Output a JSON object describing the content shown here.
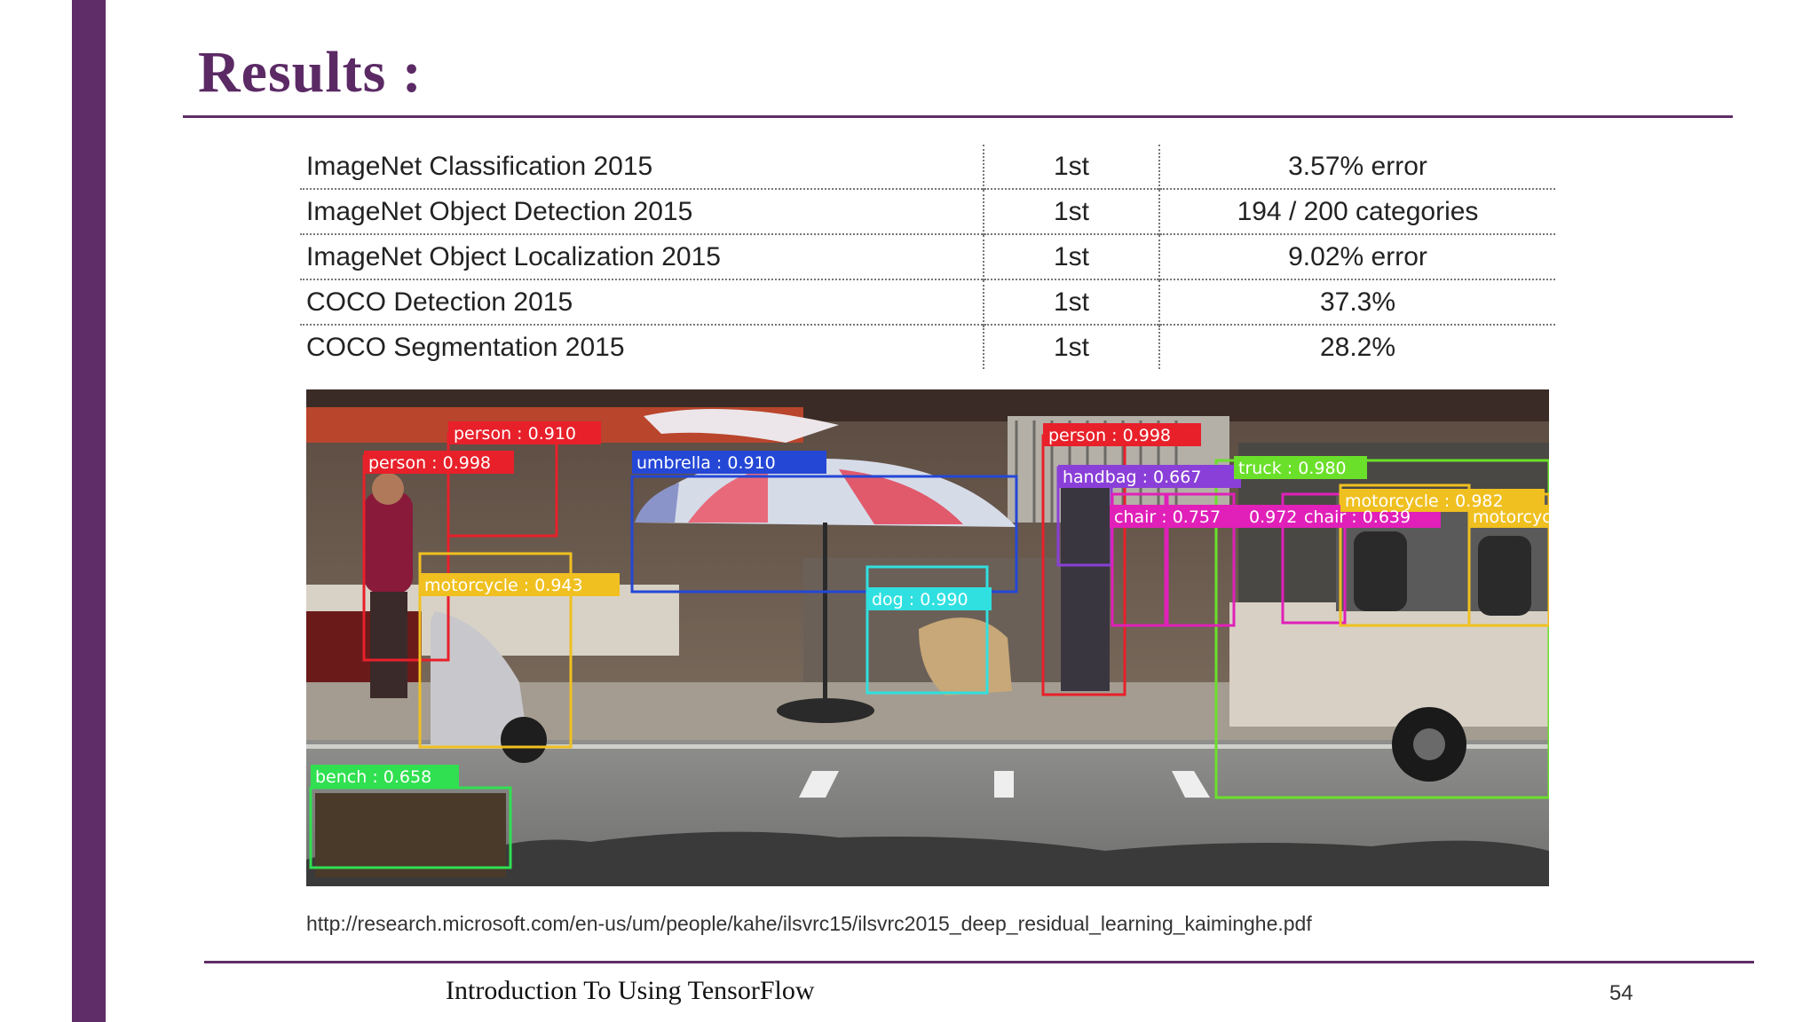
{
  "slide": {
    "title": "Results :",
    "footer": "Introduction To Using TensorFlow",
    "page_number": "54",
    "source_url": "http://research.microsoft.com/en-us/um/people/kahe/ilsvrc15/ilsvrc2015_deep_residual_learning_kaiminghe.pdf",
    "accent_color": "#5f2d67"
  },
  "results": [
    {
      "competition": "ImageNet Classification 2015",
      "rank": "1st",
      "result": "3.57% error"
    },
    {
      "competition": "ImageNet Object Detection 2015",
      "rank": "1st",
      "result": "194 / 200 categories"
    },
    {
      "competition": "ImageNet Object Localization 2015",
      "rank": "1st",
      "result": "9.02% error"
    },
    {
      "competition": "COCO Detection 2015",
      "rank": "1st",
      "result": "37.3%"
    },
    {
      "competition": "COCO Segmentation 2015",
      "rank": "1st",
      "result": "28.2%"
    }
  ],
  "detections": [
    {
      "label": "person : 0.910",
      "color": "#e8202a"
    },
    {
      "label": "person : 0.998",
      "color": "#e8202a"
    },
    {
      "label": "umbrella : 0.910",
      "color": "#2447d6"
    },
    {
      "label": "person : 0.998",
      "color": "#e8202a"
    },
    {
      "label": "handbag : 0.667",
      "color": "#8a3fd8"
    },
    {
      "label": "truck : 0.980",
      "color": "#6be02a"
    },
    {
      "label": "chair : 0.757",
      "color": "#e020b8"
    },
    {
      "label": "0.972",
      "color": "#e020b8"
    },
    {
      "label": "chair : 0.639",
      "color": "#e020b8"
    },
    {
      "label": "motorcycle : 0.982",
      "color": "#f0c020"
    },
    {
      "label": "motorcycle",
      "color": "#f0c020"
    },
    {
      "label": "motorcycle : 0.943",
      "color": "#f0c020"
    },
    {
      "label": "dog : 0.990",
      "color": "#30e0e0"
    },
    {
      "label": "bench : 0.658",
      "color": "#30e050"
    }
  ]
}
